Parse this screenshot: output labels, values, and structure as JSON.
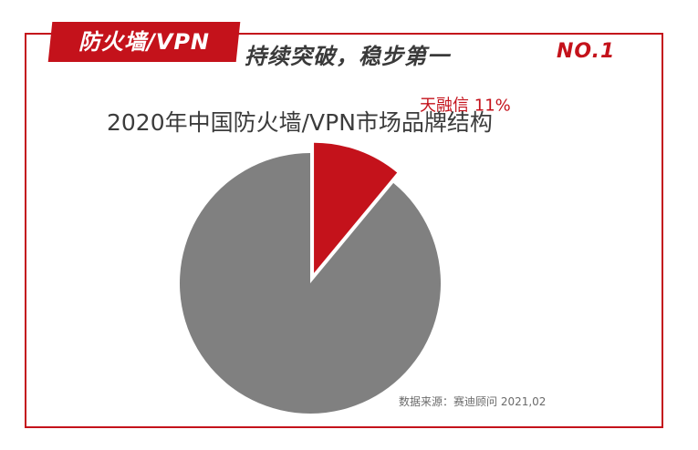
{
  "banner": {
    "tag": "防火墙/VPN",
    "headline": "持续突破，稳步第一",
    "rank": "NO.1"
  },
  "colors": {
    "brand_red": "#c4121b",
    "others_gray": "#808080"
  },
  "chart_data": {
    "type": "pie",
    "title": "2020年中国防火墙/VPN市场品牌结构",
    "slices": [
      {
        "label": "天融信",
        "value": 11,
        "percent_label": "11%",
        "color": "#c4121b",
        "exploded": true,
        "show_label": true
      },
      {
        "label": "",
        "value": 89,
        "percent_label": "",
        "color": "#808080",
        "exploded": false,
        "show_label": false
      }
    ],
    "source": "数据来源：赛迪顾问  2021,02"
  }
}
